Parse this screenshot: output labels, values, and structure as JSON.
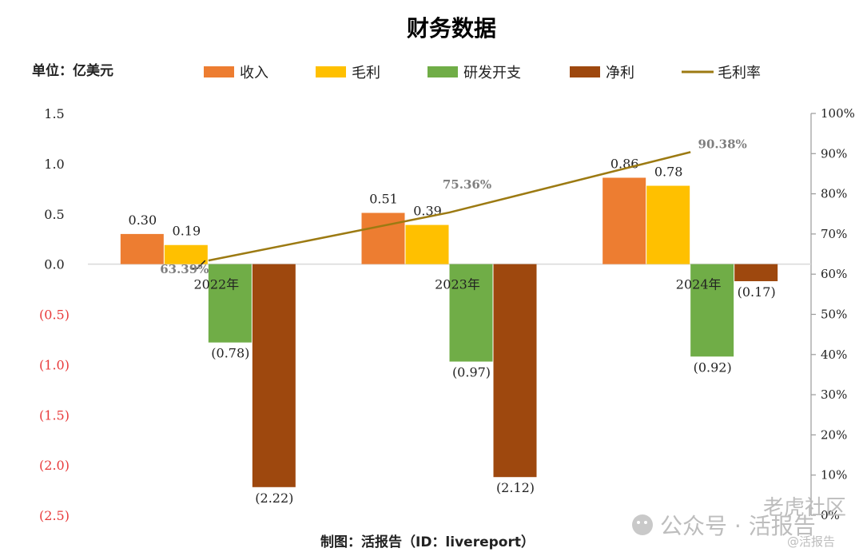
{
  "chart_data": {
    "type": "bar",
    "title": "财务数据",
    "unit_label": "单位：亿美元",
    "categories": [
      "2022年",
      "2023年",
      "2024年"
    ],
    "series": [
      {
        "name": "收入",
        "values": [
          0.3,
          0.51,
          0.86
        ],
        "labels": [
          "0.30",
          "0.51",
          "0.86"
        ],
        "color": "#ED7D31"
      },
      {
        "name": "毛利",
        "values": [
          0.19,
          0.39,
          0.78
        ],
        "labels": [
          "0.19",
          "0.39",
          "0.78"
        ],
        "color": "#FFC000"
      },
      {
        "name": "研发开支",
        "values": [
          -0.78,
          -0.97,
          -0.92
        ],
        "labels": [
          "(0.78)",
          "(0.97)",
          "(0.92)"
        ],
        "color": "#70AD47"
      },
      {
        "name": "净利",
        "values": [
          -2.22,
          -2.12,
          -0.17
        ],
        "labels": [
          "(2.22)",
          "(2.12)",
          "(0.17)"
        ],
        "color": "#9E480E"
      }
    ],
    "line_series": {
      "name": "毛利率",
      "values": [
        63.39,
        75.36,
        90.38
      ],
      "labels": [
        "63.39%",
        "75.36%",
        "90.38%"
      ],
      "color": "#9C7A12",
      "axis": "right"
    },
    "y_left": {
      "ylim": [
        -2.5,
        1.5
      ],
      "ticks": [
        1.5,
        1.0,
        0.5,
        0.0,
        -0.5,
        -1.0,
        -1.5,
        -2.0,
        -2.5
      ],
      "tick_labels": [
        "1.5",
        "1.0",
        "0.5",
        "0.0",
        "(0.5)",
        "(1.0)",
        "(1.5)",
        "(2.0)",
        "(2.5)"
      ]
    },
    "y_right": {
      "ylim": [
        0,
        100
      ],
      "ticks": [
        100,
        90,
        80,
        70,
        60,
        50,
        40,
        30,
        20,
        10,
        0
      ],
      "tick_labels": [
        "100%",
        "90%",
        "80%",
        "70%",
        "60%",
        "50%",
        "40%",
        "30%",
        "20%",
        "10%",
        "0%"
      ]
    },
    "legend_position": "top",
    "grid": false
  },
  "footer": "制图：活报告（ID：livereport）",
  "watermark": {
    "line1": "公众号 · 活报告",
    "line2": "@活报告",
    "line3": "老虎社区"
  }
}
